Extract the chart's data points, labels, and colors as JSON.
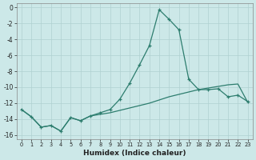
{
  "xlabel": "Humidex (Indice chaleur)",
  "x": [
    0,
    1,
    2,
    3,
    4,
    5,
    6,
    7,
    8,
    9,
    10,
    11,
    12,
    13,
    14,
    15,
    16,
    17,
    18,
    19,
    20,
    21,
    22,
    23
  ],
  "line1_y": [
    -12.8,
    -13.7,
    -15.0,
    -14.8,
    -15.5,
    -13.8,
    -14.2,
    -13.6,
    -13.2,
    -12.8,
    -11.5,
    -9.5,
    -7.2,
    -4.8,
    -0.3,
    -1.5,
    -2.8,
    -9.0,
    -10.3,
    -10.3,
    -10.2,
    -11.2,
    -11.0,
    -11.8
  ],
  "line2_y": [
    -12.8,
    -13.7,
    -15.0,
    -14.8,
    -15.5,
    -13.8,
    -14.2,
    -13.6,
    -13.4,
    -13.2,
    -12.9,
    -12.6,
    -12.3,
    -12.0,
    -11.6,
    -11.2,
    -10.9,
    -10.6,
    -10.3,
    -10.1,
    -9.9,
    -9.7,
    -9.6,
    -11.9
  ],
  "line_color": "#2d7d6e",
  "bg_color": "#cce8e8",
  "grid_color": "#b0d0d0",
  "ylim": [
    -16.5,
    0.5
  ],
  "xlim": [
    -0.5,
    23.5
  ],
  "yticks": [
    0,
    -2,
    -4,
    -6,
    -8,
    -10,
    -12,
    -14,
    -16
  ],
  "xticks": [
    0,
    1,
    2,
    3,
    4,
    5,
    6,
    7,
    8,
    9,
    10,
    11,
    12,
    13,
    14,
    15,
    16,
    17,
    18,
    19,
    20,
    21,
    22,
    23
  ]
}
